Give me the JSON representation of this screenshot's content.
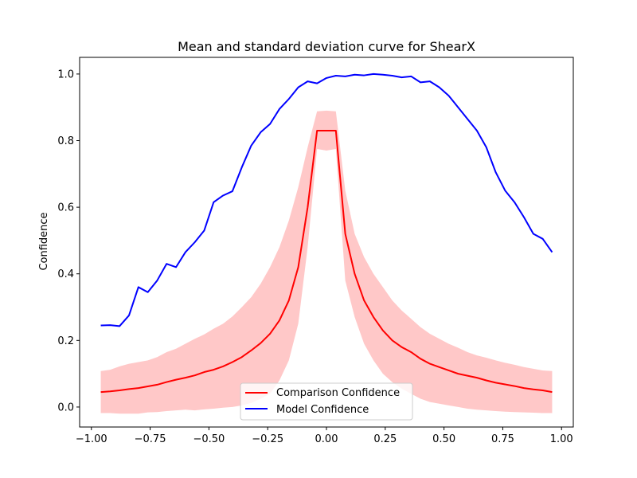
{
  "chart_data": {
    "type": "line",
    "title": "Mean and standard deviation curve for ShearX",
    "xlabel": "",
    "ylabel": "Confidence",
    "xlim": [
      -1.05,
      1.05
    ],
    "ylim": [
      -0.06,
      1.05
    ],
    "xticks": [
      -1.0,
      -0.75,
      -0.5,
      -0.25,
      0.0,
      0.25,
      0.5,
      0.75,
      1.0
    ],
    "xtick_labels": [
      "−1.00",
      "−0.75",
      "−0.50",
      "−0.25",
      "0.00",
      "0.25",
      "0.50",
      "0.75",
      "1.00"
    ],
    "yticks": [
      0.0,
      0.2,
      0.4,
      0.6,
      0.8,
      1.0
    ],
    "ytick_labels": [
      "0.0",
      "0.2",
      "0.4",
      "0.6",
      "0.8",
      "1.0"
    ],
    "grid": false,
    "legend_position": "bottom-center",
    "x": [
      -0.96,
      -0.92,
      -0.88,
      -0.84,
      -0.8,
      -0.76,
      -0.72,
      -0.68,
      -0.64,
      -0.6,
      -0.56,
      -0.52,
      -0.48,
      -0.44,
      -0.4,
      -0.36,
      -0.32,
      -0.28,
      -0.24,
      -0.2,
      -0.16,
      -0.12,
      -0.08,
      -0.04,
      0.0,
      0.04,
      0.08,
      0.12,
      0.16,
      0.2,
      0.24,
      0.28,
      0.32,
      0.36,
      0.4,
      0.44,
      0.48,
      0.52,
      0.56,
      0.6,
      0.64,
      0.68,
      0.72,
      0.76,
      0.8,
      0.84,
      0.88,
      0.92,
      0.96
    ],
    "series": [
      {
        "name": "Comparison Confidence",
        "color": "#ff0000",
        "band_color": "#ffc8c8",
        "values": [
          0.045,
          0.047,
          0.05,
          0.054,
          0.057,
          0.062,
          0.067,
          0.075,
          0.082,
          0.088,
          0.095,
          0.105,
          0.112,
          0.122,
          0.135,
          0.15,
          0.17,
          0.192,
          0.22,
          0.26,
          0.32,
          0.42,
          0.6,
          0.83,
          0.83,
          0.83,
          0.52,
          0.4,
          0.32,
          0.27,
          0.23,
          0.2,
          0.18,
          0.165,
          0.145,
          0.13,
          0.12,
          0.11,
          0.1,
          0.094,
          0.088,
          0.08,
          0.073,
          0.068,
          0.063,
          0.057,
          0.053,
          0.05,
          0.045
        ],
        "upper": [
          0.108,
          0.112,
          0.122,
          0.13,
          0.135,
          0.14,
          0.15,
          0.165,
          0.175,
          0.19,
          0.205,
          0.218,
          0.235,
          0.25,
          0.272,
          0.3,
          0.33,
          0.37,
          0.42,
          0.48,
          0.56,
          0.66,
          0.78,
          0.888,
          0.89,
          0.888,
          0.65,
          0.52,
          0.45,
          0.4,
          0.36,
          0.32,
          0.29,
          0.265,
          0.24,
          0.22,
          0.205,
          0.19,
          0.178,
          0.165,
          0.155,
          0.148,
          0.14,
          0.133,
          0.127,
          0.12,
          0.115,
          0.11,
          0.108
        ],
        "lower": [
          -0.018,
          -0.018,
          -0.02,
          -0.02,
          -0.02,
          -0.016,
          -0.015,
          -0.012,
          -0.01,
          -0.008,
          -0.01,
          -0.007,
          -0.005,
          -0.002,
          0.0,
          0.005,
          0.012,
          0.025,
          0.04,
          0.08,
          0.14,
          0.25,
          0.48,
          0.775,
          0.77,
          0.775,
          0.38,
          0.27,
          0.19,
          0.14,
          0.1,
          0.075,
          0.055,
          0.04,
          0.025,
          0.015,
          0.01,
          0.005,
          0.0,
          -0.005,
          -0.008,
          -0.01,
          -0.012,
          -0.014,
          -0.015,
          -0.016,
          -0.017,
          -0.018,
          -0.018
        ]
      },
      {
        "name": "Model Confidence",
        "color": "#0000ff",
        "values": [
          0.245,
          0.246,
          0.243,
          0.275,
          0.36,
          0.345,
          0.38,
          0.43,
          0.42,
          0.465,
          0.495,
          0.53,
          0.615,
          0.635,
          0.648,
          0.72,
          0.785,
          0.825,
          0.85,
          0.895,
          0.925,
          0.96,
          0.978,
          0.972,
          0.988,
          0.995,
          0.993,
          0.998,
          0.996,
          1.0,
          0.998,
          0.995,
          0.99,
          0.993,
          0.975,
          0.978,
          0.96,
          0.935,
          0.9,
          0.865,
          0.83,
          0.78,
          0.705,
          0.65,
          0.615,
          0.57,
          0.52,
          0.505,
          0.465
        ]
      }
    ]
  }
}
